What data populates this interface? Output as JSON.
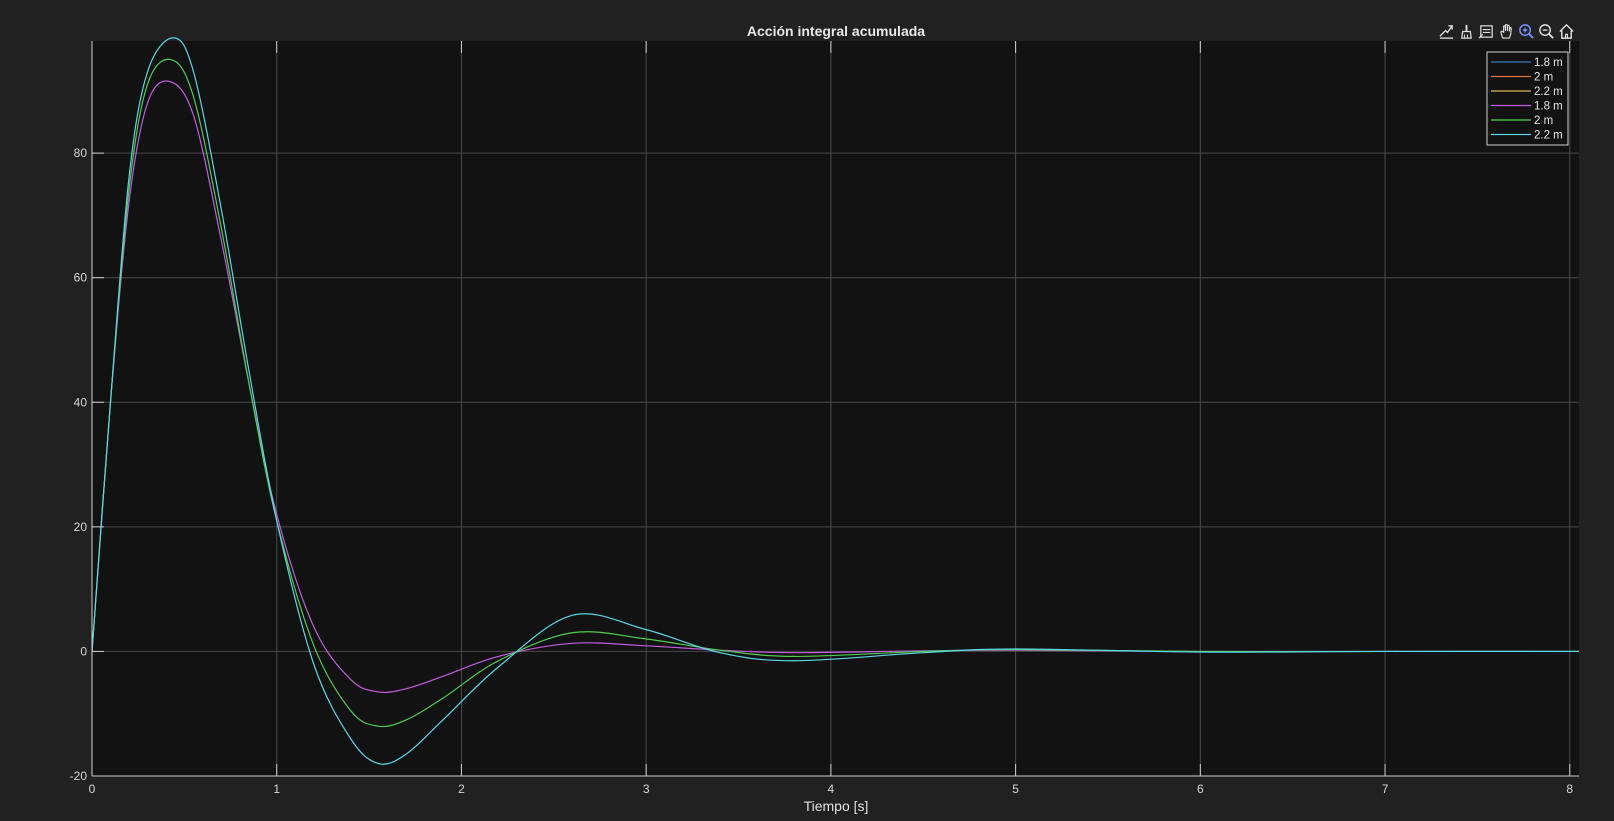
{
  "toolbar": {
    "buttons": [
      {
        "name": "export-icon"
      },
      {
        "name": "brush-icon"
      },
      {
        "name": "datatip-icon"
      },
      {
        "name": "pan-hand-icon"
      },
      {
        "name": "zoom-in-icon",
        "active": true
      },
      {
        "name": "zoom-out-icon"
      },
      {
        "name": "home-icon"
      }
    ],
    "active_color": "#7b93ff",
    "icon_color": "#e0e0e0"
  },
  "chart_data": {
    "type": "line",
    "title": "Acción integral acumulada",
    "xlabel": "Tiempo [s]",
    "ylabel": "",
    "xlim": [
      0,
      8.05
    ],
    "ylim": [
      -20,
      98
    ],
    "xticks": [
      0,
      1,
      2,
      3,
      4,
      5,
      6,
      7,
      8
    ],
    "yticks": [
      -20,
      0,
      20,
      40,
      60,
      80
    ],
    "grid": true,
    "legend_position": "top-right",
    "background": "#121212",
    "series": [
      {
        "name": "1.8 m",
        "color": "#3a78b8",
        "in_legend": true,
        "drawn": false,
        "x": [
          0,
          0.1,
          0.2,
          0.3,
          0.42,
          0.55,
          0.7,
          0.85,
          1.0,
          1.2,
          1.4,
          1.55,
          1.7,
          1.9,
          2.2,
          2.6,
          3.0,
          3.4,
          3.8,
          4.5,
          5.0,
          6.0,
          7.0,
          8.05
        ],
        "values": [
          0,
          40,
          72,
          88,
          91.5,
          86,
          66,
          43,
          22,
          4,
          -4.5,
          -6.5,
          -6,
          -4,
          -0.8,
          1.3,
          0.9,
          0.2,
          -0.2,
          0.1,
          0.2,
          0,
          0,
          0
        ]
      },
      {
        "name": "2 m",
        "color": "#d9733a",
        "in_legend": true,
        "drawn": false,
        "x": [
          0,
          0.1,
          0.2,
          0.3,
          0.43,
          0.55,
          0.7,
          0.85,
          1.0,
          1.2,
          1.4,
          1.55,
          1.7,
          1.9,
          2.2,
          2.6,
          3.0,
          3.4,
          3.8,
          4.5,
          5.0,
          6.0,
          7.0,
          8.05
        ],
        "values": [
          0,
          40,
          74,
          91,
          95,
          89,
          68,
          43,
          21,
          1,
          -9.5,
          -12,
          -11,
          -7.5,
          -1.5,
          3,
          2,
          0.2,
          -0.8,
          0,
          0.3,
          0,
          0,
          0
        ]
      },
      {
        "name": "2.2 m",
        "color": "#e0b95a",
        "in_legend": true,
        "drawn": false,
        "x": [
          0,
          0.1,
          0.2,
          0.3,
          0.44,
          0.55,
          0.7,
          0.85,
          1.0,
          1.2,
          1.4,
          1.55,
          1.7,
          1.9,
          2.2,
          2.6,
          3.0,
          3.4,
          3.8,
          4.5,
          5.0,
          6.0,
          7.0,
          8.05
        ],
        "values": [
          0,
          40,
          76,
          93,
          98.5,
          93,
          71,
          45,
          21,
          -2,
          -14,
          -18,
          -16.5,
          -11,
          -2.5,
          5.8,
          3.5,
          -0.2,
          -1.5,
          -0.2,
          0.4,
          -0.1,
          0,
          0
        ]
      },
      {
        "name": "1.8 m",
        "color": "#c25bdf",
        "in_legend": true,
        "drawn": true,
        "x": [
          0,
          0.1,
          0.2,
          0.3,
          0.42,
          0.55,
          0.7,
          0.85,
          1.0,
          1.2,
          1.4,
          1.55,
          1.7,
          1.9,
          2.2,
          2.6,
          3.0,
          3.4,
          3.8,
          4.5,
          5.0,
          6.0,
          7.0,
          8.05
        ],
        "values": [
          0,
          40,
          72,
          88,
          91.5,
          86,
          66,
          43,
          22,
          4,
          -4.5,
          -6.5,
          -6,
          -4,
          -0.8,
          1.3,
          0.9,
          0.2,
          -0.2,
          0.1,
          0.2,
          0,
          0,
          0
        ]
      },
      {
        "name": "2 m",
        "color": "#4fce4f",
        "in_legend": true,
        "drawn": true,
        "x": [
          0,
          0.1,
          0.2,
          0.3,
          0.43,
          0.55,
          0.7,
          0.85,
          1.0,
          1.2,
          1.4,
          1.55,
          1.7,
          1.9,
          2.2,
          2.6,
          3.0,
          3.4,
          3.8,
          4.5,
          5.0,
          6.0,
          7.0,
          8.05
        ],
        "values": [
          0,
          40,
          74,
          91,
          95,
          89,
          68,
          43,
          21,
          1,
          -9.5,
          -12,
          -11,
          -7.5,
          -1.5,
          3,
          2,
          0.2,
          -0.8,
          0,
          0.3,
          0,
          0,
          0
        ]
      },
      {
        "name": "2.2 m",
        "color": "#5ad8e6",
        "in_legend": true,
        "drawn": true,
        "x": [
          0,
          0.1,
          0.2,
          0.3,
          0.44,
          0.55,
          0.7,
          0.85,
          1.0,
          1.2,
          1.4,
          1.55,
          1.7,
          1.9,
          2.2,
          2.6,
          3.0,
          3.4,
          3.8,
          4.5,
          5.0,
          6.0,
          7.0,
          8.05
        ],
        "values": [
          0,
          40,
          76,
          93,
          98.5,
          93,
          71,
          45,
          21,
          -2,
          -14,
          -18,
          -16.5,
          -11,
          -2.5,
          5.8,
          3.5,
          -0.2,
          -1.5,
          -0.2,
          0.4,
          -0.1,
          0,
          0
        ]
      }
    ]
  }
}
